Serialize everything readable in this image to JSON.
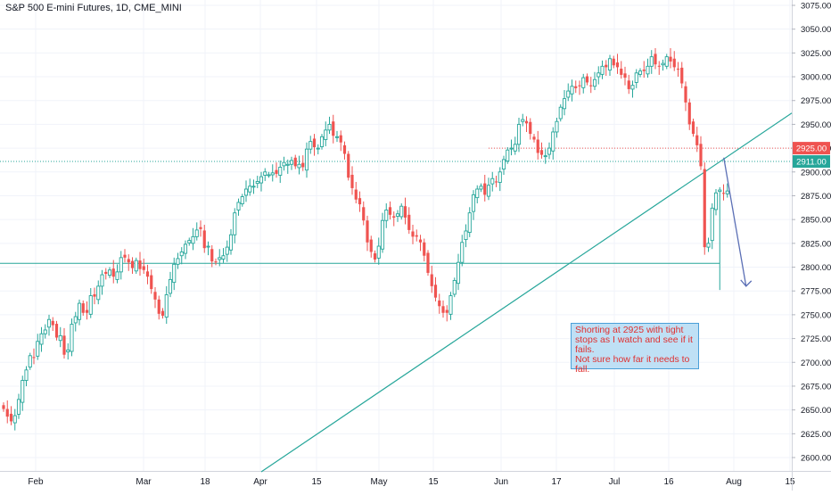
{
  "header": {
    "title": "S&P 500 E-mini Futures, 1D, CME_MINI"
  },
  "annotation": {
    "lines": [
      "Shorting at 2925 with tight",
      "stops as I watch and see if it",
      "fails.",
      "Not sure how far it needs to",
      "fall."
    ]
  },
  "colors": {
    "up": "#26a69a",
    "down": "#ef5350",
    "background": "#ffffff",
    "grid": "#f0f3fa",
    "trendline": "#26a69a",
    "arrow": "#5b6fb5",
    "label_red": "#ef5350",
    "label_green": "#26a69a",
    "note_bg": "#bfe0f5"
  },
  "chart_data": {
    "type": "candlestick",
    "x_tick_labels": [
      "Feb",
      "Mar",
      "18",
      "Apr",
      "15",
      "May",
      "15",
      "Jun",
      "17",
      "Jul",
      "16",
      "Aug",
      "15"
    ],
    "y_tick_labels": [
      "3075.00",
      "3050.00",
      "3025.00",
      "3000.00",
      "2975.00",
      "2950.00",
      "2925.00",
      "2900.00",
      "2875.00",
      "2850.00",
      "2825.00",
      "2800.00",
      "2775.00",
      "2750.00",
      "2725.00",
      "2700.00",
      "2675.00",
      "2650.00",
      "2625.00",
      "2600.00"
    ],
    "ylim": [
      2588,
      3080
    ],
    "price_labels": [
      {
        "text": "2925.00",
        "value": 2925,
        "color": "red"
      },
      {
        "text": "2911.00",
        "value": 2911,
        "color": "green"
      }
    ],
    "horizontal_levels": [
      {
        "value": 2911,
        "style": "dotted",
        "color": "green",
        "start_index": 0
      },
      {
        "value": 2925,
        "style": "dotted",
        "color": "red",
        "start_index": 128
      },
      {
        "value": 2804,
        "style": "solid",
        "color": "green",
        "start_index": 0,
        "end_index": 189
      }
    ],
    "trendline": {
      "p1": {
        "index": 68,
        "value": 2585
      },
      "p2": {
        "index": 201,
        "value": 2943
      }
    },
    "arrow": {
      "from": {
        "index": 191,
        "value": 2915
      },
      "to": {
        "index": 195,
        "value": 2780
      }
    },
    "closes": [
      2651,
      2643,
      2638,
      2644,
      2661,
      2681,
      2692,
      2707,
      2705,
      2722,
      2730,
      2734,
      2745,
      2739,
      2726,
      2728,
      2708,
      2713,
      2740,
      2748,
      2762,
      2752,
      2752,
      2770,
      2769,
      2780,
      2792,
      2793,
      2797,
      2790,
      2795,
      2810,
      2810,
      2805,
      2799,
      2807,
      2798,
      2797,
      2790,
      2777,
      2766,
      2751,
      2749,
      2771,
      2787,
      2803,
      2809,
      2816,
      2824,
      2828,
      2832,
      2839,
      2840,
      2820,
      2822,
      2806,
      2805,
      2810,
      2812,
      2821,
      2834,
      2857,
      2868,
      2874,
      2882,
      2885,
      2885,
      2890,
      2895,
      2900,
      2897,
      2899,
      2898,
      2905,
      2910,
      2908,
      2912,
      2906,
      2908,
      2905,
      2924,
      2932,
      2926,
      2925,
      2937,
      2944,
      2950,
      2938,
      2937,
      2931,
      2919,
      2894,
      2883,
      2871,
      2866,
      2849,
      2826,
      2816,
      2808,
      2822,
      2849,
      2860,
      2855,
      2852,
      2856,
      2864,
      2852,
      2839,
      2832,
      2832,
      2826,
      2812,
      2794,
      2780,
      2768,
      2759,
      2752,
      2752,
      2770,
      2786,
      2805,
      2826,
      2838,
      2857,
      2876,
      2882,
      2885,
      2876,
      2886,
      2893,
      2889,
      2900,
      2913,
      2923,
      2925,
      2929,
      2950,
      2955,
      2951,
      2940,
      2934,
      2920,
      2918,
      2917,
      2925,
      2942,
      2953,
      2968,
      2977,
      2985,
      2990,
      2988,
      2990,
      2999,
      2994,
      2990,
      2997,
      3004,
      3011,
      3010,
      3019,
      3012,
      3010,
      3002,
      2999,
      2987,
      2991,
      3004,
      3006,
      3006,
      3011,
      3021,
      3013,
      3011,
      3014,
      3021,
      3016,
      3010,
      3008,
      2993,
      2973,
      2950,
      2940,
      2928,
      2906,
      2821,
      2825,
      2862,
      2878,
      2881,
      2877,
      2880
    ]
  }
}
